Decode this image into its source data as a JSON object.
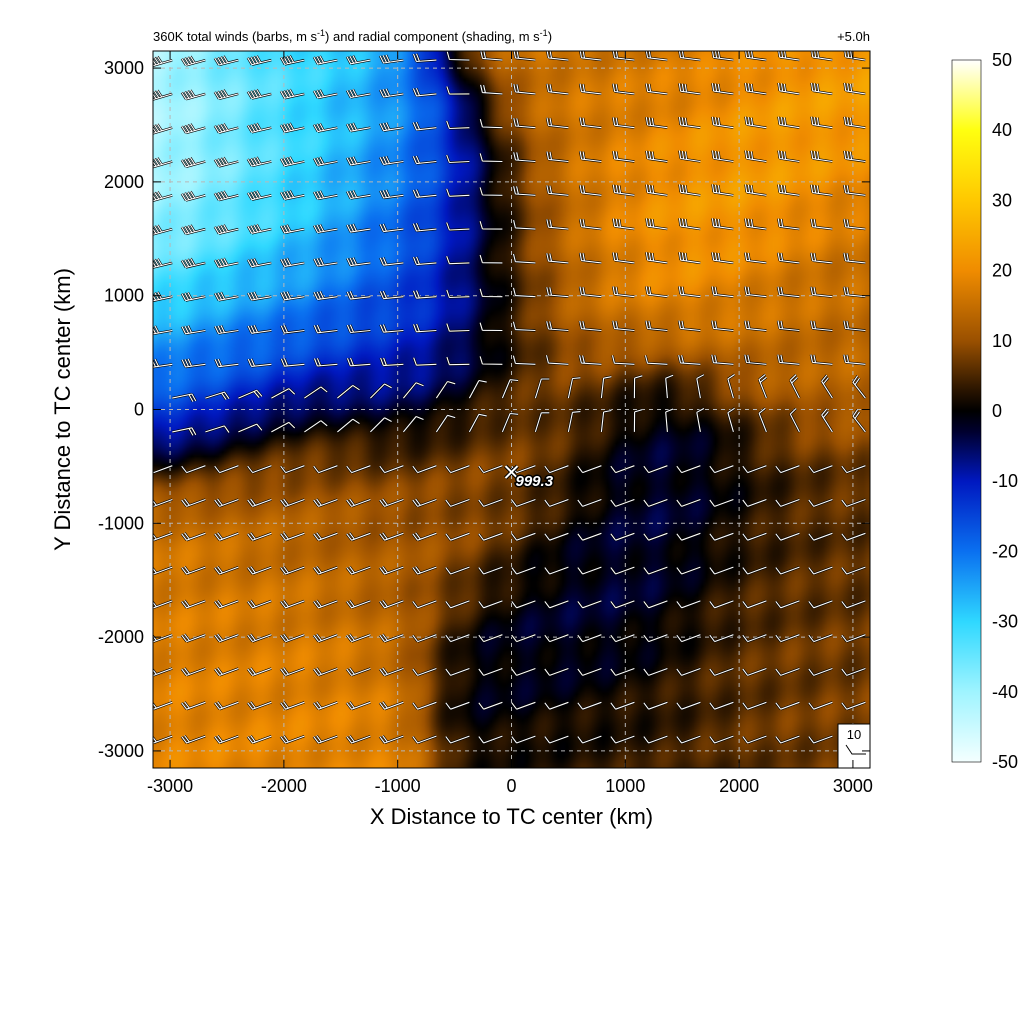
{
  "chart_data": {
    "type": "heatmap",
    "title_parts": {
      "a": "360K total winds (barbs, m s",
      "sup1": "-1",
      "b": ") and radial component (shading, m s",
      "sup2": "-1",
      "c": ")"
    },
    "time_label": "+5.0h",
    "xlabel": "X Distance to TC center (km)",
    "ylabel": "Y Distance to TC center (km)",
    "xlim": [
      -3150,
      3150
    ],
    "ylim": [
      -3150,
      3150
    ],
    "x_ticks": [
      -3000,
      -2000,
      -1000,
      0,
      1000,
      2000,
      3000
    ],
    "y_ticks": [
      -3000,
      -2000,
      -1000,
      0,
      1000,
      2000,
      3000
    ],
    "grid": true,
    "colorbar": {
      "range": [
        -50,
        50
      ],
      "ticks": [
        50,
        40,
        30,
        20,
        10,
        0,
        -10,
        -20,
        -30,
        -40,
        -50
      ],
      "stops": [
        {
          "v": -50,
          "color": "#f4ffff"
        },
        {
          "v": -40,
          "color": "#9ff4ff"
        },
        {
          "v": -30,
          "color": "#2fd8ff"
        },
        {
          "v": -20,
          "color": "#0a70f0"
        },
        {
          "v": -10,
          "color": "#0018c0"
        },
        {
          "v": -3,
          "color": "#000030"
        },
        {
          "v": 0,
          "color": "#000000"
        },
        {
          "v": 3,
          "color": "#2a1500"
        },
        {
          "v": 10,
          "color": "#9a5000"
        },
        {
          "v": 20,
          "color": "#f08c00"
        },
        {
          "v": 30,
          "color": "#ffc800"
        },
        {
          "v": 40,
          "color": "#ffff10"
        },
        {
          "v": 50,
          "color": "#ffffff"
        }
      ]
    },
    "radial_wind_field": [
      {
        "x": -2800,
        "y": 1600,
        "value": -45
      },
      {
        "x": -1800,
        "y": 1800,
        "value": -30
      },
      {
        "x": -900,
        "y": 1500,
        "value": -20
      },
      {
        "x": -2400,
        "y": 700,
        "value": -15
      },
      {
        "x": -900,
        "y": 600,
        "value": -12
      },
      {
        "x": 1800,
        "y": 1900,
        "value": 24
      },
      {
        "x": 300,
        "y": 1300,
        "value": 17
      },
      {
        "x": 1000,
        "y": 2800,
        "value": 16
      },
      {
        "x": 2600,
        "y": 800,
        "value": 14
      },
      {
        "x": -2400,
        "y": -1800,
        "value": 17
      },
      {
        "x": -1600,
        "y": -800,
        "value": 12
      },
      {
        "x": -2500,
        "y": -2800,
        "value": 19
      },
      {
        "x": 0,
        "y": -500,
        "value": 12
      },
      {
        "x": 1200,
        "y": -800,
        "value": -6
      },
      {
        "x": 800,
        "y": -1800,
        "value": -4
      },
      {
        "x": 2400,
        "y": -1200,
        "value": 6
      },
      {
        "x": 2300,
        "y": -2400,
        "value": 8
      },
      {
        "x": 1200,
        "y": -2900,
        "value": 4
      }
    ],
    "barbs": {
      "reference_speed": 10,
      "reference_label": "10"
    },
    "center_marker": {
      "x": 0,
      "y": -550,
      "symbol": "X",
      "label": "999.3"
    }
  }
}
